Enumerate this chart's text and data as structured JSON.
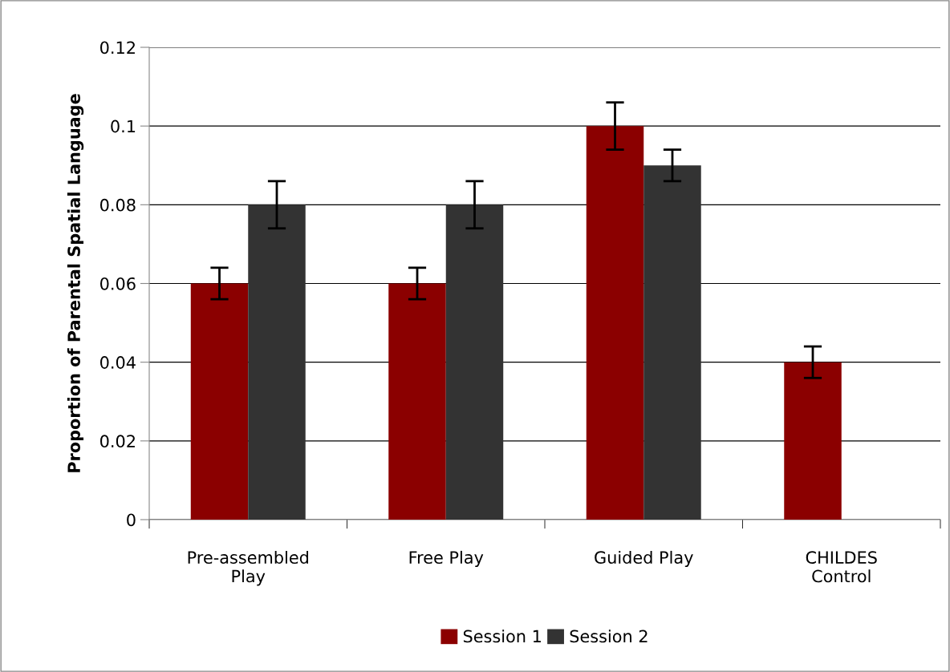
{
  "chart_data": {
    "type": "bar",
    "ylabel": "Proportion of Parental Spatial Language",
    "categories": [
      "Pre-assembled\nPlay",
      "Free Play",
      "Guided Play",
      "CHILDES\nControl"
    ],
    "series": [
      {
        "name": "Session 1",
        "color": "#8b0000",
        "values": [
          0.06,
          0.06,
          0.1,
          0.04
        ],
        "errors": [
          0.004,
          0.004,
          0.006,
          0.004
        ]
      },
      {
        "name": "Session 2",
        "color": "#333333",
        "values": [
          0.08,
          0.08,
          0.09,
          null
        ],
        "errors": [
          0.006,
          0.006,
          0.004,
          null
        ]
      }
    ],
    "ylim": [
      0,
      0.12
    ],
    "yticks": [
      0,
      0.02,
      0.04,
      0.06,
      0.08,
      0.1,
      0.12
    ],
    "grid": "y",
    "legend": "bottom"
  }
}
